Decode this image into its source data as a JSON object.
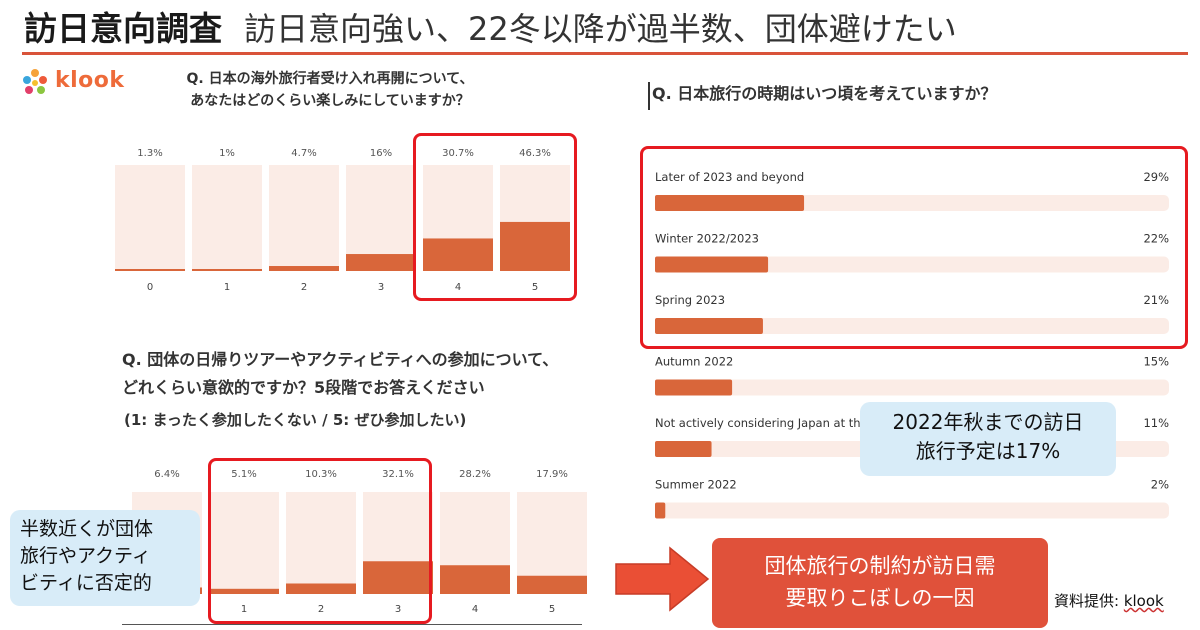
{
  "slide": {
    "title_main": "訪日意向調査",
    "title_sub": "訪日意向強い、22冬以降が過半数、団体避けたい"
  },
  "logo": {
    "text": "klook"
  },
  "colors": {
    "accent": "#d9663a",
    "track": "#fbece6",
    "highlight": "#e61a20",
    "callout_blue": "#d8ecf8",
    "callout_red": "#e0513a"
  },
  "chart_data": [
    {
      "type": "bar",
      "title": "Q. 日本の海外旅行者受け入れ再開について、\nあなたはどのくらい楽しみにしていますか？",
      "categories": [
        "0",
        "1",
        "2",
        "3",
        "4",
        "5"
      ],
      "value_labels": [
        "1.3%",
        "1%",
        "4.7%",
        "16%",
        "30.7%",
        "46.3%"
      ],
      "values": [
        1.3,
        1,
        4.7,
        16,
        30.7,
        46.3
      ],
      "ylim": [
        0,
        100
      ],
      "xlabel": "",
      "ylabel": ""
    },
    {
      "type": "bar",
      "title": "Q. 団体の日帰りツアーやアクティビティへの参加について、\nどれくらい意欲的ですか？5段階でお答えください",
      "note": "(1: まったく参加したくない / 5: ぜひ参加したい)",
      "categories": [
        "",
        "1",
        "2",
        "3",
        "4",
        "5"
      ],
      "value_labels": [
        "6.4%",
        "5.1%",
        "10.3%",
        "32.1%",
        "28.2%",
        "17.9%"
      ],
      "values": [
        6.4,
        5.1,
        10.3,
        32.1,
        28.2,
        17.9
      ],
      "ylim": [
        0,
        100
      ],
      "xlabel": "",
      "ylabel": ""
    },
    {
      "type": "bar",
      "orientation": "horizontal",
      "title": "Q. 日本旅行の時期はいつ頃を考えていますか？",
      "categories": [
        "Later of 2023 and beyond",
        "Winter 2022/2023",
        "Spring 2023",
        "Autumn 2022",
        "Not actively considering Japan at the",
        "Summer 2022"
      ],
      "value_labels": [
        "29%",
        "22%",
        "21%",
        "15%",
        "11%",
        "2%"
      ],
      "values": [
        29,
        22,
        21,
        15,
        11,
        2
      ],
      "xlim": [
        0,
        100
      ],
      "xlabel": "",
      "ylabel": ""
    }
  ],
  "callouts": {
    "negative_line1": "半数近くが団体",
    "negative_line2": "旅行やアクティ",
    "negative_line3": "ビティに否定的",
    "autumn_line1": "2022年秋までの訪日",
    "autumn_line2": "旅行予定は17%",
    "red_line1": "団体旅行の制約が訪日需",
    "red_line2": "要取りこぼしの一因"
  },
  "source": {
    "label": "資料提供: ",
    "name": "klook"
  }
}
